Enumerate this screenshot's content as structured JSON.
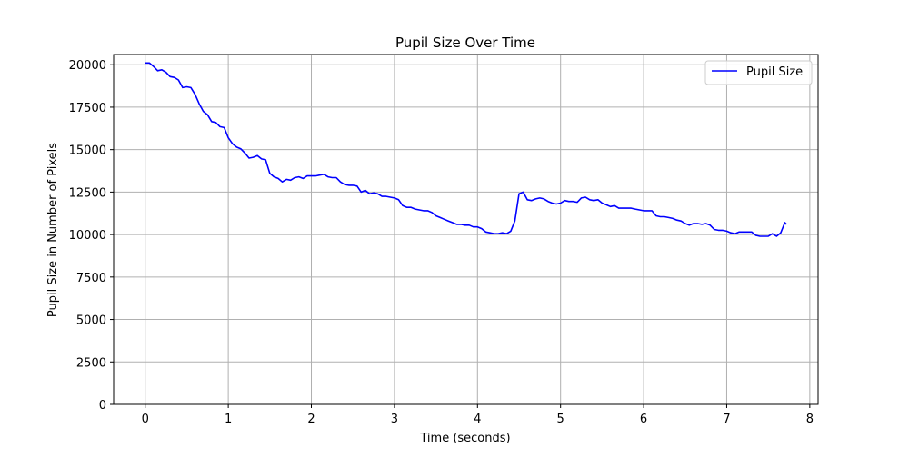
{
  "chart_data": {
    "type": "line",
    "title": "Pupil Size Over Time",
    "xlabel": "Time (seconds)",
    "ylabel": "Pupil Size in Number of Pixels",
    "xlim": [
      -0.38,
      8.1
    ],
    "ylim": [
      0,
      20600
    ],
    "xticks": [
      0,
      1,
      2,
      3,
      4,
      5,
      6,
      7,
      8
    ],
    "yticks": [
      0,
      2500,
      5000,
      7500,
      10000,
      12500,
      15000,
      17500,
      20000
    ],
    "grid": true,
    "legend": {
      "position": "top-right",
      "entries": [
        "Pupil Size"
      ]
    },
    "series": [
      {
        "name": "Pupil Size",
        "color": "#0000ff",
        "x": [
          0,
          0.05,
          0.1,
          0.15,
          0.2,
          0.25,
          0.3,
          0.35,
          0.4,
          0.45,
          0.5,
          0.55,
          0.6,
          0.65,
          0.7,
          0.75,
          0.8,
          0.85,
          0.9,
          0.95,
          1.0,
          1.05,
          1.1,
          1.15,
          1.2,
          1.25,
          1.3,
          1.35,
          1.4,
          1.45,
          1.5,
          1.55,
          1.6,
          1.65,
          1.7,
          1.75,
          1.8,
          1.85,
          1.9,
          1.95,
          2.0,
          2.05,
          2.1,
          2.15,
          2.2,
          2.25,
          2.3,
          2.35,
          2.4,
          2.45,
          2.5,
          2.55,
          2.6,
          2.65,
          2.7,
          2.75,
          2.8,
          2.85,
          2.9,
          2.95,
          3.0,
          3.05,
          3.1,
          3.15,
          3.2,
          3.25,
          3.3,
          3.35,
          3.4,
          3.45,
          3.5,
          3.55,
          3.6,
          3.65,
          3.7,
          3.75,
          3.8,
          3.85,
          3.9,
          3.95,
          4.0,
          4.05,
          4.1,
          4.15,
          4.2,
          4.25,
          4.3,
          4.35,
          4.4,
          4.45,
          4.5,
          4.55,
          4.6,
          4.65,
          4.7,
          4.75,
          4.8,
          4.85,
          4.9,
          4.95,
          5.0,
          5.05,
          5.1,
          5.15,
          5.2,
          5.25,
          5.3,
          5.35,
          5.4,
          5.45,
          5.5,
          5.55,
          5.6,
          5.65,
          5.7,
          5.75,
          5.8,
          5.85,
          5.9,
          5.95,
          6.0,
          6.05,
          6.1,
          6.15,
          6.2,
          6.25,
          6.3,
          6.35,
          6.4,
          6.45,
          6.5,
          6.55,
          6.6,
          6.65,
          6.7,
          6.75,
          6.8,
          6.85,
          6.9,
          6.95,
          7.0,
          7.05,
          7.1,
          7.15,
          7.2,
          7.25,
          7.3,
          7.35,
          7.4,
          7.45,
          7.5,
          7.55,
          7.6,
          7.65,
          7.7,
          7.72
        ],
        "values": [
          20100,
          20100,
          19900,
          19650,
          19700,
          19550,
          19300,
          19250,
          19100,
          18650,
          18700,
          18650,
          18250,
          17700,
          17250,
          17050,
          16650,
          16600,
          16350,
          16300,
          15700,
          15350,
          15150,
          15050,
          14800,
          14500,
          14550,
          14650,
          14450,
          14400,
          13600,
          13400,
          13300,
          13100,
          13250,
          13200,
          13350,
          13400,
          13300,
          13450,
          13450,
          13450,
          13500,
          13550,
          13400,
          13350,
          13350,
          13100,
          12950,
          12900,
          12900,
          12850,
          12500,
          12600,
          12400,
          12450,
          12400,
          12250,
          12250,
          12200,
          12150,
          12050,
          11700,
          11600,
          11600,
          11500,
          11450,
          11400,
          11400,
          11300,
          11100,
          11000,
          10900,
          10800,
          10700,
          10600,
          10600,
          10550,
          10550,
          10450,
          10450,
          10350,
          10150,
          10100,
          10050,
          10050,
          10100,
          10050,
          10200,
          10800,
          12400,
          12500,
          12050,
          12000,
          12100,
          12150,
          12100,
          11950,
          11850,
          11800,
          11850,
          12000,
          11950,
          11950,
          11900,
          12150,
          12200,
          12050,
          12000,
          12050,
          11850,
          11750,
          11650,
          11700,
          11550,
          11550,
          11550,
          11550,
          11500,
          11450,
          11400,
          11400,
          11400,
          11100,
          11050,
          11050,
          11000,
          10950,
          10850,
          10800,
          10650,
          10550,
          10650,
          10650,
          10600,
          10650,
          10550,
          10300,
          10250,
          10250,
          10200,
          10100,
          10050,
          10150,
          10150,
          10150,
          10150,
          9950,
          9900,
          9900,
          9900,
          10050,
          9900,
          10100,
          10700,
          10600
        ]
      }
    ]
  }
}
